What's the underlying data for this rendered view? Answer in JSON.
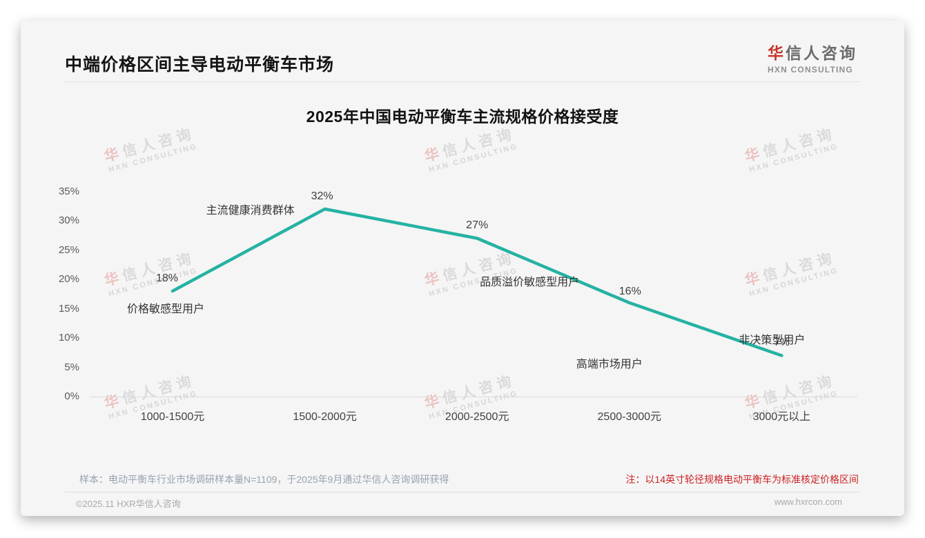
{
  "page": {
    "title": "中端价格区间主导电动平衡车市场",
    "logo": {
      "cn_accent": "华",
      "cn_rest": "信人咨询",
      "en": "HXN CONSULTING"
    },
    "watermark": {
      "line1_accent": "华",
      "line1_rest": "信人咨询",
      "line2": "HXN CONSULTING"
    }
  },
  "chart_data": {
    "type": "line",
    "title": "2025年中国电动平衡车主流规格价格接受度",
    "categories": [
      "1000-1500元",
      "1500-2000元",
      "2000-2500元",
      "2500-3000元",
      "3000元以上"
    ],
    "values": [
      18,
      32,
      27,
      16,
      7
    ],
    "point_labels": [
      "18%",
      "32%",
      "27%",
      "16%",
      "7%"
    ],
    "annotations": [
      "价格敏感型用户",
      "主流健康消费群体",
      "品质溢价敏感型用户",
      "高端市场用户",
      "非决策型用户"
    ],
    "ytick_labels": [
      "0%",
      "5%",
      "10%",
      "15%",
      "20%",
      "25%",
      "30%",
      "35%"
    ],
    "ylim": [
      0,
      35
    ],
    "grid": false,
    "legend": null,
    "line_color": "#25b2a2",
    "xlabel": "",
    "ylabel": ""
  },
  "footer": {
    "sample_note": "样本：电动平衡车行业市场调研样本量N=1109，于2025年9月通过华信人咨询调研获得",
    "red_note": "注：以14英寸轮径规格电动平衡车为标准核定价格区间",
    "copyright": "©2025.11 HXR华信人咨询",
    "website": "www.hxrcon.com"
  }
}
